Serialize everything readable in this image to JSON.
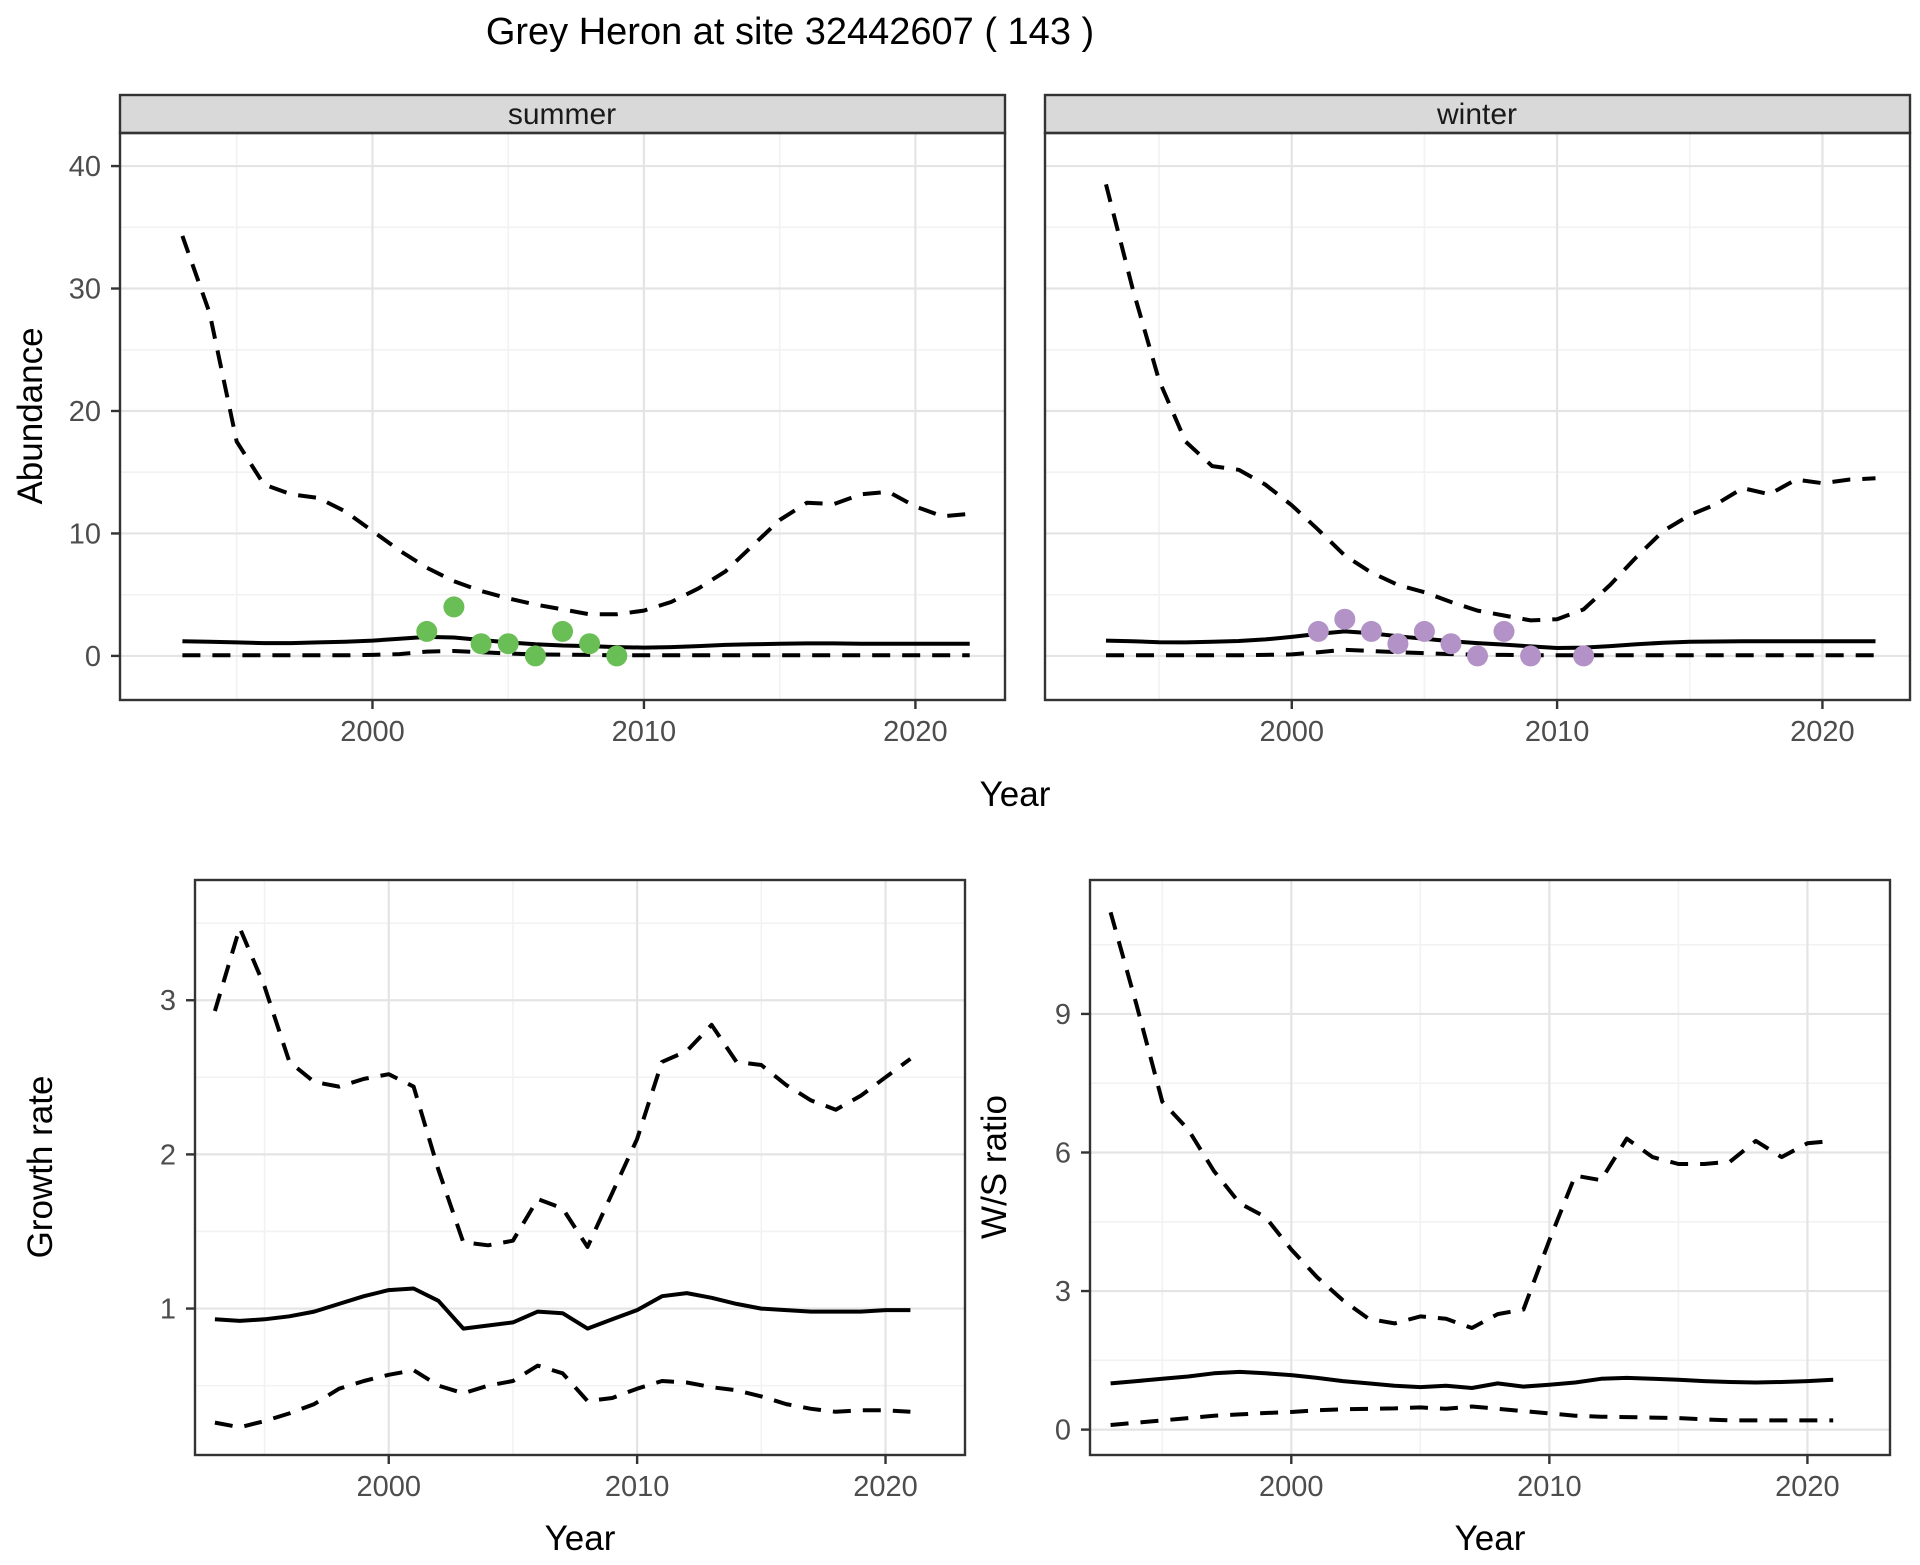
{
  "figure": {
    "title": "Grey Heron at site 32442607 ( 143 )",
    "colors": {
      "summer_points": "#69be55",
      "winter_points": "#b292c7",
      "line": "#000000",
      "strip_bg": "#d9d9d9",
      "strip_border": "#333333",
      "panel_border": "#333333",
      "grid_major": "#e4e4e4",
      "grid_minor": "#f2f2f2",
      "tick_label": "#4d4d4d"
    }
  },
  "chart_data": [
    {
      "type": "line",
      "panel": "abundance-summer",
      "strip_label": "summer",
      "xlabel": "Year",
      "ylabel": "Abundance",
      "xlim": [
        1990.7,
        2023.3
      ],
      "ylim": [
        -3.6,
        42.7
      ],
      "x_ticks": [
        2000,
        2010,
        2020
      ],
      "x_minor": [
        1995,
        2005,
        2015
      ],
      "y_ticks": [
        0,
        10,
        20,
        30,
        40
      ],
      "y_minor": [
        5,
        15,
        25,
        35
      ],
      "grid": true,
      "legend": "none",
      "years": [
        1993,
        1994,
        1995,
        1996,
        1997,
        1998,
        1999,
        2000,
        2001,
        2002,
        2003,
        2004,
        2005,
        2006,
        2007,
        2008,
        2009,
        2010,
        2011,
        2012,
        2013,
        2014,
        2015,
        2016,
        2017,
        2018,
        2019,
        2020,
        2021,
        2022
      ],
      "series": [
        {
          "name": "upper_ci",
          "style": "dashed",
          "values": [
            34.3,
            28.0,
            17.5,
            14.0,
            13.2,
            12.9,
            11.8,
            10.2,
            8.6,
            7.2,
            6.1,
            5.3,
            4.7,
            4.2,
            3.8,
            3.4,
            3.4,
            3.7,
            4.4,
            5.5,
            6.9,
            9.0,
            11.1,
            12.5,
            12.4,
            13.2,
            13.4,
            12.2,
            11.4,
            11.6
          ]
        },
        {
          "name": "fit",
          "style": "solid",
          "values": [
            1.2,
            1.15,
            1.1,
            1.05,
            1.05,
            1.1,
            1.15,
            1.25,
            1.4,
            1.55,
            1.5,
            1.3,
            1.1,
            0.95,
            0.85,
            0.8,
            0.72,
            0.68,
            0.72,
            0.8,
            0.9,
            0.95,
            1.0,
            1.02,
            1.02,
            1.0,
            1.0,
            1.0,
            1.0,
            1.0
          ]
        },
        {
          "name": "lower_ci",
          "style": "dashed",
          "values": [
            0.05,
            0.05,
            0.05,
            0.05,
            0.05,
            0.05,
            0.05,
            0.08,
            0.15,
            0.35,
            0.4,
            0.3,
            0.2,
            0.12,
            0.1,
            0.08,
            0.05,
            0.05,
            0.05,
            0.05,
            0.05,
            0.05,
            0.05,
            0.05,
            0.05,
            0.05,
            0.05,
            0.05,
            0.05,
            0.05
          ]
        }
      ],
      "points": {
        "name": "summer-observations",
        "color": "#69be55",
        "years": [
          2002,
          2003,
          2004,
          2005,
          2006,
          2007,
          2008,
          2009
        ],
        "values": [
          2,
          4,
          1,
          1,
          0,
          2,
          1,
          0
        ]
      }
    },
    {
      "type": "line",
      "panel": "abundance-winter",
      "strip_label": "winter",
      "xlabel": "Year",
      "ylabel": "Abundance",
      "xlim": [
        1990.7,
        2023.3
      ],
      "ylim": [
        -3.6,
        42.7
      ],
      "x_ticks": [
        2000,
        2010,
        2020
      ],
      "x_minor": [
        1995,
        2005,
        2015
      ],
      "y_ticks": [
        0,
        10,
        20,
        30,
        40
      ],
      "y_minor": [
        5,
        15,
        25,
        35
      ],
      "grid": true,
      "legend": "none",
      "years": [
        1993,
        1994,
        1995,
        1996,
        1997,
        1998,
        1999,
        2000,
        2001,
        2002,
        2003,
        2004,
        2005,
        2006,
        2007,
        2008,
        2009,
        2010,
        2011,
        2012,
        2013,
        2014,
        2015,
        2016,
        2017,
        2018,
        2019,
        2020,
        2021,
        2022
      ],
      "series": [
        {
          "name": "upper_ci",
          "style": "dashed",
          "values": [
            38.5,
            30.0,
            22.5,
            17.5,
            15.5,
            15.2,
            14.0,
            12.3,
            10.3,
            8.2,
            6.8,
            5.8,
            5.2,
            4.4,
            3.7,
            3.3,
            2.9,
            3.0,
            3.8,
            5.8,
            8.1,
            10.2,
            11.5,
            12.4,
            13.7,
            13.2,
            14.4,
            14.1,
            14.4,
            14.5
          ]
        },
        {
          "name": "fit",
          "style": "solid",
          "values": [
            1.25,
            1.2,
            1.12,
            1.1,
            1.15,
            1.22,
            1.35,
            1.55,
            1.8,
            2.0,
            1.85,
            1.6,
            1.4,
            1.2,
            1.05,
            0.92,
            0.78,
            0.65,
            0.68,
            0.8,
            0.95,
            1.08,
            1.15,
            1.18,
            1.2,
            1.2,
            1.2,
            1.2,
            1.2,
            1.2
          ]
        },
        {
          "name": "lower_ci",
          "style": "dashed",
          "values": [
            0.05,
            0.05,
            0.05,
            0.05,
            0.05,
            0.05,
            0.08,
            0.12,
            0.3,
            0.5,
            0.4,
            0.3,
            0.22,
            0.15,
            0.1,
            0.08,
            0.05,
            0.05,
            0.05,
            0.05,
            0.05,
            0.05,
            0.05,
            0.05,
            0.05,
            0.05,
            0.05,
            0.05,
            0.05,
            0.05
          ]
        }
      ],
      "points": {
        "name": "winter-observations",
        "color": "#b292c7",
        "years": [
          2001,
          2002,
          2003,
          2004,
          2005,
          2006,
          2007,
          2008,
          2009,
          2011
        ],
        "values": [
          2,
          3,
          2,
          1,
          2,
          1,
          0,
          2,
          0,
          0
        ]
      }
    },
    {
      "type": "line",
      "panel": "growth-rate",
      "strip_label": "",
      "xlabel": "Year",
      "ylabel": "Growth rate",
      "xlim": [
        1992.2,
        2023.2
      ],
      "ylim": [
        0.05,
        3.78
      ],
      "x_ticks": [
        2000,
        2010,
        2020
      ],
      "x_minor": [
        1995,
        2005,
        2015
      ],
      "y_ticks": [
        1,
        2,
        3
      ],
      "y_minor": [
        0.5,
        1.5,
        2.5,
        3.5
      ],
      "grid": true,
      "legend": "none",
      "years": [
        1993,
        1994,
        1995,
        1996,
        1997,
        1998,
        1999,
        2000,
        2001,
        2002,
        2003,
        2004,
        2005,
        2006,
        2007,
        2008,
        2009,
        2010,
        2011,
        2012,
        2013,
        2014,
        2015,
        2016,
        2017,
        2018,
        2019,
        2020,
        2021
      ],
      "series": [
        {
          "name": "upper_ci",
          "style": "dashed",
          "values": [
            2.93,
            3.47,
            3.09,
            2.6,
            2.47,
            2.44,
            2.49,
            2.52,
            2.44,
            1.9,
            1.43,
            1.41,
            1.44,
            1.71,
            1.65,
            1.4,
            1.75,
            2.1,
            2.6,
            2.67,
            2.84,
            2.6,
            2.58,
            2.45,
            2.35,
            2.29,
            2.38,
            2.5,
            2.62
          ]
        },
        {
          "name": "fit",
          "style": "solid",
          "values": [
            0.93,
            0.92,
            0.93,
            0.95,
            0.98,
            1.03,
            1.08,
            1.12,
            1.13,
            1.05,
            0.87,
            0.89,
            0.91,
            0.98,
            0.97,
            0.87,
            0.93,
            0.99,
            1.08,
            1.1,
            1.07,
            1.03,
            1.0,
            0.99,
            0.98,
            0.98,
            0.98,
            0.99,
            0.99
          ]
        },
        {
          "name": "lower_ci",
          "style": "dashed",
          "values": [
            0.26,
            0.23,
            0.27,
            0.32,
            0.38,
            0.48,
            0.53,
            0.57,
            0.6,
            0.5,
            0.45,
            0.5,
            0.53,
            0.63,
            0.58,
            0.4,
            0.42,
            0.48,
            0.53,
            0.52,
            0.49,
            0.47,
            0.43,
            0.38,
            0.35,
            0.33,
            0.34,
            0.34,
            0.33
          ]
        }
      ],
      "points": null
    },
    {
      "type": "line",
      "panel": "ws-ratio",
      "strip_label": "",
      "xlabel": "Year",
      "ylabel": "W/S ratio",
      "xlim": [
        1992.2,
        2023.2
      ],
      "ylim": [
        -0.55,
        11.9
      ],
      "x_ticks": [
        2000,
        2010,
        2020
      ],
      "x_minor": [
        1995,
        2005,
        2015
      ],
      "y_ticks": [
        0,
        3,
        6,
        9
      ],
      "y_minor": [
        1.5,
        4.5,
        7.5,
        10.5
      ],
      "grid": true,
      "legend": "none",
      "years": [
        1993,
        1994,
        1995,
        1996,
        1997,
        1998,
        1999,
        2000,
        2001,
        2002,
        2003,
        2004,
        2005,
        2006,
        2007,
        2008,
        2009,
        2010,
        2011,
        2012,
        2013,
        2014,
        2015,
        2016,
        2017,
        2018,
        2019,
        2020,
        2021
      ],
      "series": [
        {
          "name": "upper_ci",
          "style": "dashed",
          "values": [
            11.2,
            9.2,
            7.1,
            6.5,
            5.6,
            4.9,
            4.6,
            3.9,
            3.3,
            2.8,
            2.4,
            2.3,
            2.45,
            2.4,
            2.2,
            2.5,
            2.6,
            4.1,
            5.5,
            5.4,
            6.3,
            5.9,
            5.75,
            5.75,
            5.8,
            6.25,
            5.9,
            6.2,
            6.25
          ]
        },
        {
          "name": "fit",
          "style": "solid",
          "values": [
            1.0,
            1.05,
            1.1,
            1.15,
            1.22,
            1.25,
            1.22,
            1.18,
            1.12,
            1.05,
            1.0,
            0.95,
            0.92,
            0.95,
            0.9,
            1.0,
            0.93,
            0.97,
            1.02,
            1.1,
            1.12,
            1.1,
            1.08,
            1.05,
            1.03,
            1.02,
            1.03,
            1.05,
            1.08
          ]
        },
        {
          "name": "lower_ci",
          "style": "dashed",
          "values": [
            0.1,
            0.15,
            0.2,
            0.25,
            0.3,
            0.33,
            0.36,
            0.38,
            0.42,
            0.44,
            0.45,
            0.46,
            0.48,
            0.45,
            0.5,
            0.45,
            0.4,
            0.35,
            0.3,
            0.28,
            0.27,
            0.26,
            0.25,
            0.22,
            0.2,
            0.2,
            0.2,
            0.2,
            0.2
          ]
        }
      ],
      "points": null
    }
  ]
}
